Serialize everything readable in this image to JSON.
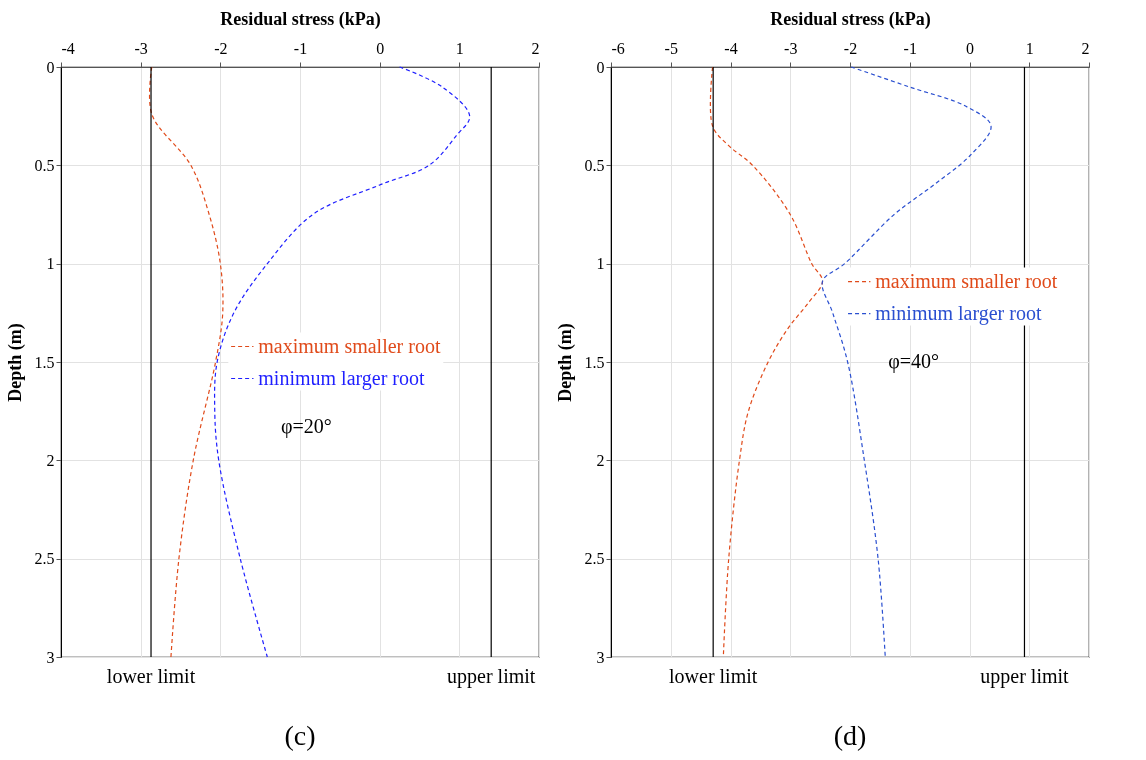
{
  "chart_data": [
    {
      "type": "line",
      "title": "(c)",
      "xlabel": "Residual stress (kPa)",
      "ylabel": "Depth (m)",
      "xlim": [
        -4,
        2
      ],
      "xticks": [
        -4,
        -3,
        -2,
        -1,
        0,
        1,
        2
      ],
      "ylim": [
        3,
        0
      ],
      "yticks": [
        0,
        0.5,
        1,
        1.5,
        2,
        2.5,
        3
      ],
      "grid": true,
      "legend": "right",
      "line_style": "dashed",
      "annotations": [
        "φ=20°"
      ],
      "ref_lines": [
        {
          "axis": "x",
          "value": -2.87,
          "label": "lower limit",
          "color": "#000000"
        },
        {
          "axis": "x",
          "value": 1.4,
          "label": "upper limit",
          "color": "#000000"
        }
      ],
      "series": [
        {
          "name": "maximum smaller root",
          "color": "#e04a1a",
          "x": [
            -2.86,
            -2.86,
            -2.37,
            -2.14,
            -2.0,
            -1.97,
            -2.06,
            -2.34,
            -2.52,
            -2.62
          ],
          "values": [
            0,
            0.24,
            0.5,
            0.75,
            1.0,
            1.25,
            1.5,
            2.0,
            2.5,
            3.0
          ]
        },
        {
          "name": "minimum larger root",
          "color": "#1f1fff",
          "x": [
            0.25,
            0.78,
            1.13,
            0.96,
            0.62,
            0.0,
            -0.84,
            -1.41,
            -1.83,
            -2.04,
            -2.07,
            -2.02,
            -1.75,
            -1.41
          ],
          "values": [
            0,
            0.1,
            0.25,
            0.35,
            0.5,
            0.6,
            0.75,
            1.0,
            1.25,
            1.5,
            1.75,
            2.0,
            2.5,
            3.0
          ]
        }
      ]
    },
    {
      "type": "line",
      "title": "(d)",
      "xlabel": "Residual stress (kPa)",
      "ylabel": "Depth (m)",
      "xlim": [
        -6,
        2
      ],
      "xticks": [
        -6,
        -5,
        -4,
        -3,
        -2,
        -1,
        0,
        1,
        2
      ],
      "ylim": [
        3,
        0
      ],
      "yticks": [
        0,
        0.5,
        1,
        1.5,
        2,
        2.5,
        3
      ],
      "grid": true,
      "legend": "right",
      "line_style": "dashed",
      "annotations": [
        "φ=40°"
      ],
      "ref_lines": [
        {
          "axis": "x",
          "value": -4.29,
          "label": "lower limit",
          "color": "#000000"
        },
        {
          "axis": "x",
          "value": 0.92,
          "label": "upper limit",
          "color": "#000000"
        }
      ],
      "series": [
        {
          "name": "maximum smaller root",
          "color": "#e04a1a",
          "x": [
            -4.3,
            -4.3,
            -4.03,
            -3.63,
            -3.0,
            -2.64,
            -2.46,
            -2.7,
            -3.04,
            -3.37,
            -3.7,
            -3.85,
            -4.03,
            -4.12
          ],
          "values": [
            0,
            0.3,
            0.4,
            0.5,
            0.75,
            1.0,
            1.09,
            1.2,
            1.33,
            1.5,
            1.75,
            2.0,
            2.5,
            3.0
          ]
        },
        {
          "name": "minimum larger root",
          "color": "#2a4fd0",
          "x": [
            -1.98,
            -1.02,
            -0.06,
            0.36,
            0.01,
            -0.6,
            -1.26,
            -2.09,
            -2.46,
            -2.29,
            -2.04,
            -1.76,
            -1.53,
            -1.41
          ],
          "values": [
            0,
            0.1,
            0.2,
            0.3,
            0.45,
            0.6,
            0.75,
            1.0,
            1.09,
            1.25,
            1.5,
            2.0,
            2.5,
            3.0
          ]
        }
      ]
    }
  ]
}
